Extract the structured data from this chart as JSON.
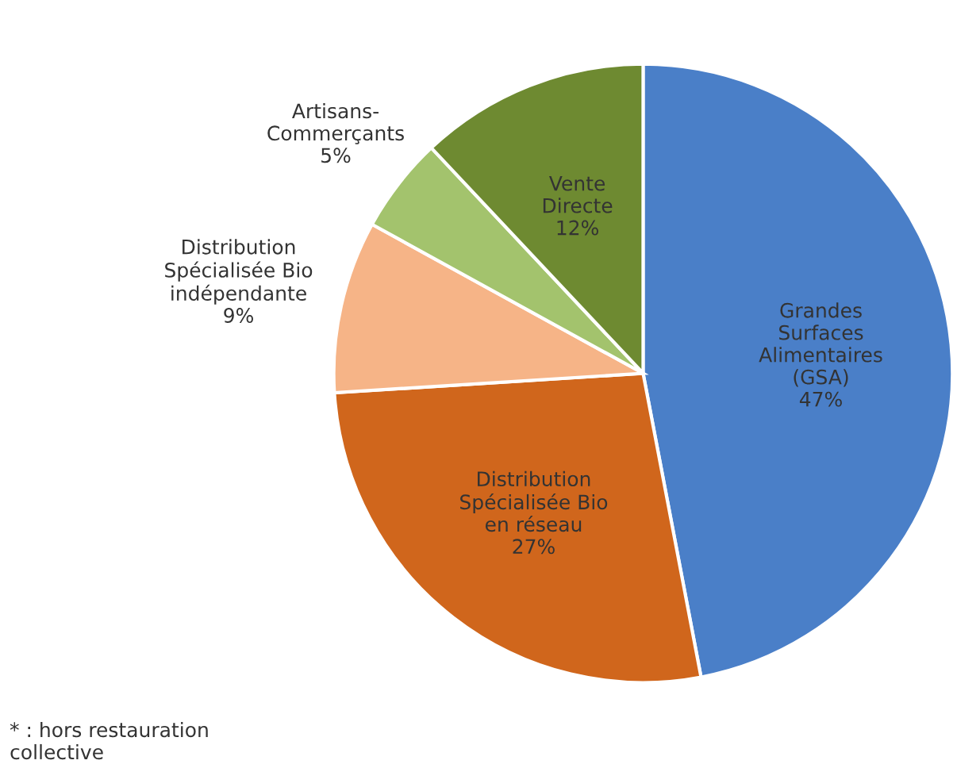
{
  "chart_data": {
    "type": "pie",
    "categories": [
      "Grandes\nSurfaces\nAlimentaires\n(GSA)",
      "Distribution\nSpécialisée Bio\nen réseau",
      "Distribution\nSpécialisée Bio\nindépendante",
      "Artisans-\nCommerçants",
      "Vente\nDirecte"
    ],
    "values": [
      47,
      27,
      9,
      5,
      12
    ],
    "value_labels": [
      "47%",
      "27%",
      "9%",
      "5%",
      "12%"
    ],
    "colors": [
      "#4a7fc8",
      "#d0661c",
      "#f6b487",
      "#a3c36d",
      "#6e8a31"
    ],
    "annotations": [
      "* : hors restauration\ncollective"
    ],
    "legend": false
  }
}
